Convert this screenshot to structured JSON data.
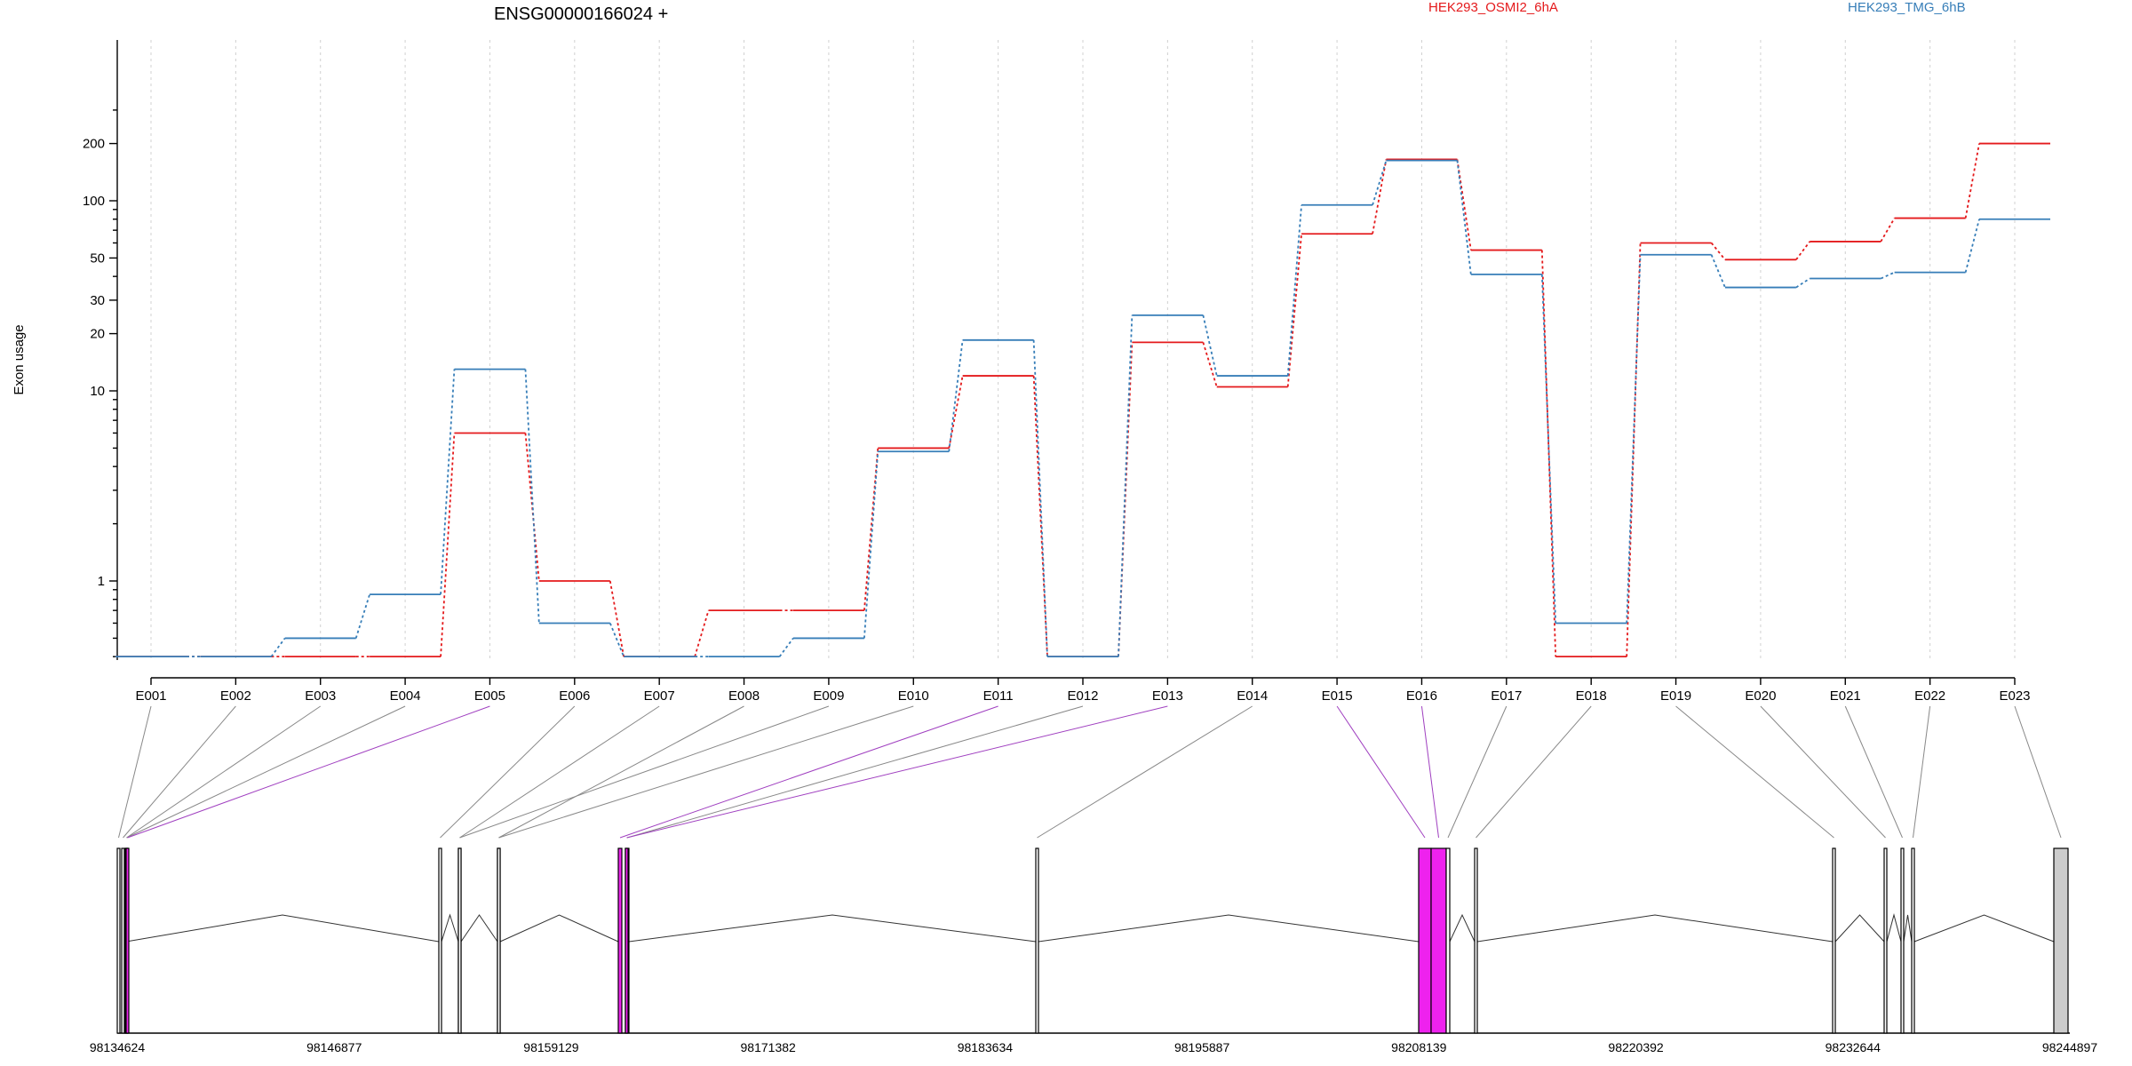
{
  "chart_data": {
    "type": "line",
    "title": "ENSG00000166024 +",
    "ylabel": "Exon usage",
    "y_scale": "log",
    "y_ticks": [
      1,
      10,
      20,
      30,
      50,
      100,
      200
    ],
    "y_tick_labels": [
      "1",
      "10",
      "20",
      "30",
      "50",
      "100",
      "200"
    ],
    "categories": [
      "E001",
      "E002",
      "E003",
      "E004",
      "E005",
      "E006",
      "E007",
      "E008",
      "E009",
      "E010",
      "E011",
      "E012",
      "E013",
      "E014",
      "E015",
      "E016",
      "E017",
      "E018",
      "E019",
      "E020",
      "E021",
      "E022",
      "E023"
    ],
    "series": [
      {
        "name": "HEK293_OSMI2_6hA",
        "color": "#e41a1c",
        "values": [
          0.4,
          0.4,
          0.4,
          0.4,
          6,
          1,
          0.4,
          0.7,
          0.7,
          5,
          12,
          0.4,
          18,
          10.5,
          67,
          165,
          55,
          0.4,
          60,
          49,
          61,
          81,
          200
        ]
      },
      {
        "name": "HEK293_TMG_6hB",
        "color": "#377eb8",
        "values": [
          0.4,
          0.4,
          0.5,
          0.85,
          13,
          0.6,
          0.4,
          0.4,
          0.5,
          4.8,
          18.5,
          0.4,
          25,
          12,
          95,
          163,
          41,
          0.6,
          52,
          35,
          39,
          42,
          80
        ]
      }
    ],
    "gene_model": {
      "coordinate_labels": [
        "98134624",
        "98146877",
        "98159129",
        "98171382",
        "98183634",
        "98195887",
        "98208139",
        "98220392",
        "98232644",
        "98244897"
      ],
      "exon_highlight": [
        false,
        false,
        false,
        false,
        true,
        false,
        false,
        false,
        false,
        false,
        true,
        false,
        true,
        false,
        true,
        true,
        false,
        false,
        false,
        false,
        false,
        false,
        false
      ],
      "highlight_color": "#ee22ee",
      "highlight_line_color": "#a040c0",
      "normal_line_color": "#888888",
      "last_exon_color": "#cccccc"
    }
  }
}
